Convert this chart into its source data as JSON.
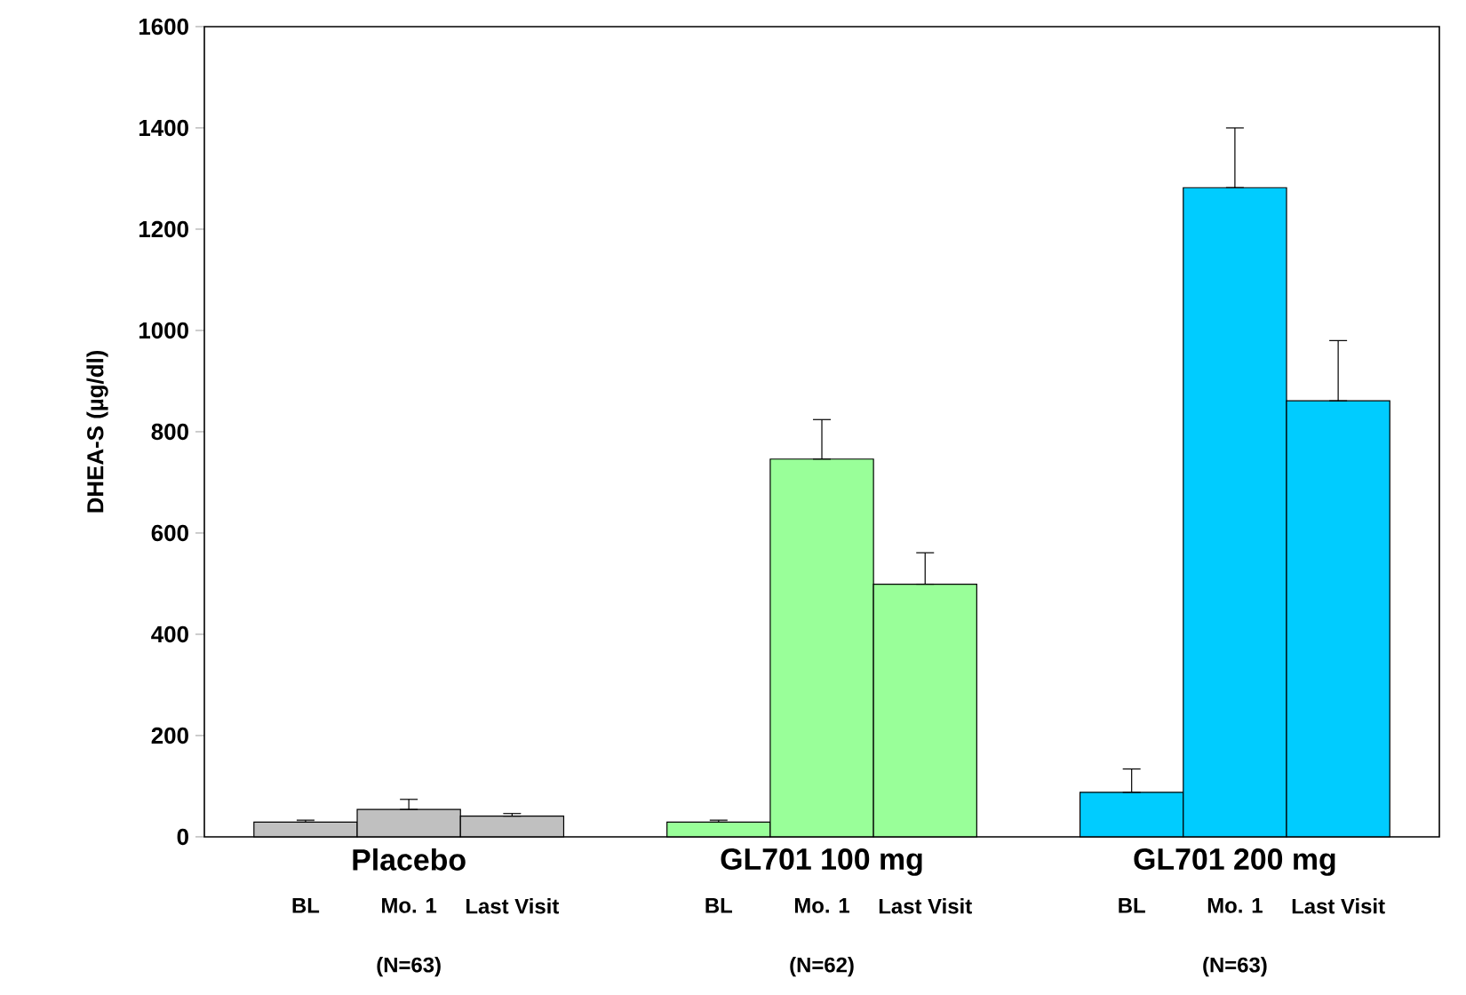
{
  "chart_data": {
    "type": "bar",
    "ylabel": "DHEA-S (µg/dl)",
    "categories": [
      "BL",
      "Mo. 1",
      "Last Visit",
      "BL",
      "Mo. 1",
      "Last Visit",
      "BL",
      "Mo. 1",
      "Last Visit"
    ],
    "values": [
      29,
      54,
      41,
      29,
      746,
      499,
      88,
      1282,
      861
    ],
    "errors": [
      [
        29,
        33
      ],
      [
        54,
        74
      ],
      [
        41,
        46
      ],
      [
        29,
        33
      ],
      [
        746,
        824
      ],
      [
        499,
        561
      ],
      [
        88,
        134
      ],
      [
        1282,
        1400
      ],
      [
        861,
        980
      ]
    ],
    "colors": [
      "#c0c0c0",
      "#c0c0c0",
      "#c0c0c0",
      "#99ff99",
      "#99ff99",
      "#99ff99",
      "#00ccff",
      "#00ccff",
      "#00ccff"
    ],
    "ylim": [
      0,
      1600
    ],
    "yticks": [
      0,
      200,
      400,
      600,
      800,
      1000,
      1200,
      1400,
      1600
    ],
    "annotations": [
      "Placebo",
      "GL701 100 mg",
      "GL701 200 mg",
      "(N=63)",
      "(N=62)",
      "(N=63)"
    ],
    "grid": false
  }
}
